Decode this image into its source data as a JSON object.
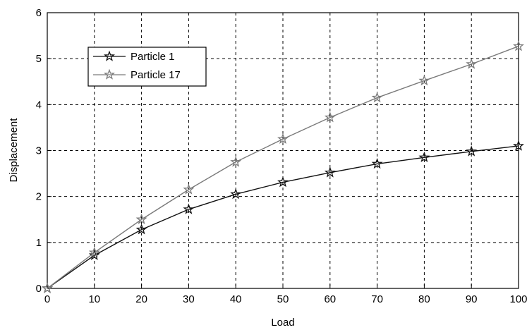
{
  "chart_data": {
    "type": "line",
    "title": "",
    "xlabel": "Load",
    "ylabel": "Displacement",
    "xlim": [
      0,
      100
    ],
    "ylim": [
      0,
      6
    ],
    "x_ticks": [
      0,
      10,
      20,
      30,
      40,
      50,
      60,
      70,
      80,
      90,
      100
    ],
    "y_ticks": [
      0,
      1,
      2,
      3,
      4,
      5,
      6
    ],
    "grid": true,
    "grid_style": "dashed",
    "legend_position": "top-left",
    "marker": "star",
    "series": [
      {
        "name": "Particle 1",
        "color": "#111111",
        "x": [
          0,
          10,
          20,
          30,
          40,
          50,
          60,
          70,
          80,
          90,
          100
        ],
        "y": [
          0,
          0.72,
          1.28,
          1.72,
          2.05,
          2.31,
          2.52,
          2.71,
          2.85,
          2.98,
          3.1
        ]
      },
      {
        "name": "Particle 17",
        "color": "#7a7a7a",
        "x": [
          0,
          10,
          20,
          30,
          40,
          50,
          60,
          70,
          80,
          90,
          100
        ],
        "y": [
          0,
          0.78,
          1.5,
          2.15,
          2.75,
          3.25,
          3.72,
          4.15,
          4.52,
          4.88,
          5.27
        ]
      }
    ]
  }
}
